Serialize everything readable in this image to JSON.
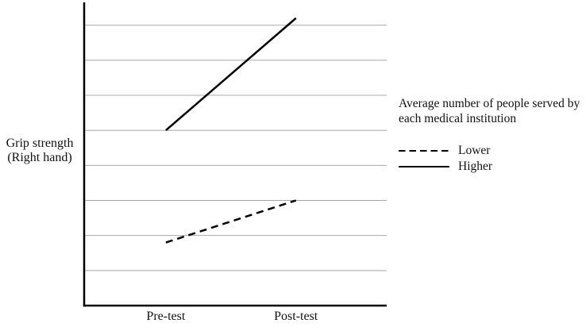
{
  "chart_data": {
    "type": "line",
    "title": "",
    "xlabel": "",
    "ylabel": "Grip strength\n(Right hand)",
    "categories": [
      "Pre-test",
      "Post-test"
    ],
    "series": [
      {
        "name": "Lower",
        "line_style": "dashed",
        "values": [
          1.8,
          3.0
        ]
      },
      {
        "name": "Higher",
        "line_style": "solid",
        "values": [
          5.0,
          8.2
        ]
      }
    ],
    "y_axis": {
      "min": 0,
      "max": 8.65,
      "tick_labels_visible": false,
      "gridline_values": [
        1,
        2,
        3,
        4,
        5,
        6,
        7,
        8
      ]
    },
    "grid": true,
    "legend": {
      "position": "right",
      "title": "Average number of people served by\neach medical institution",
      "entries": [
        {
          "label": "Lower",
          "line_style": "dashed"
        },
        {
          "label": "Higher",
          "line_style": "solid"
        }
      ]
    },
    "colors": {
      "line": "#000000",
      "gridline": "#a8a8a8",
      "text": "#111111",
      "background": "#ffffff"
    }
  }
}
